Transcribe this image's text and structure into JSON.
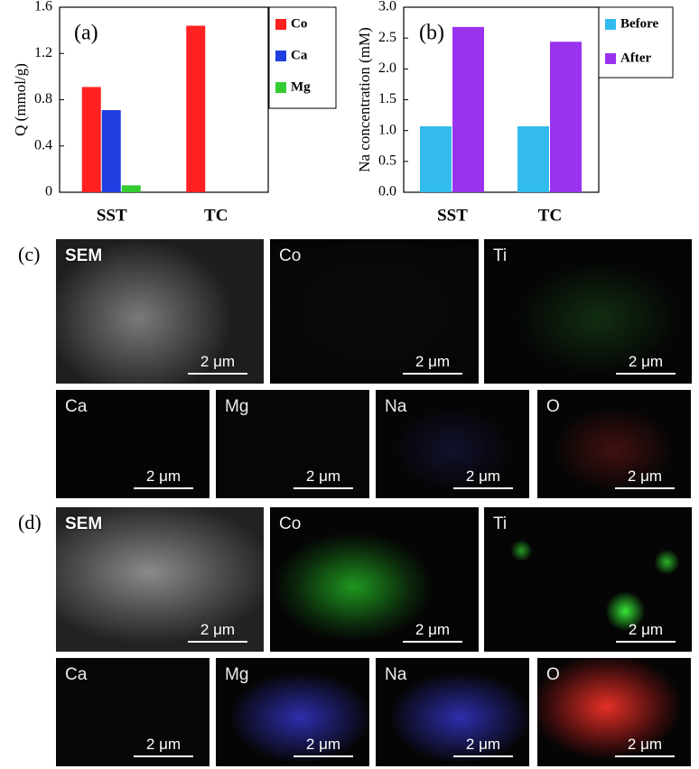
{
  "chart_data": [
    {
      "type": "bar",
      "panel_label": "(a)",
      "y_label": "Q (mmol/g)",
      "categories": [
        "SST",
        "TC"
      ],
      "series": [
        {
          "name": "Co",
          "color": "#ff2020",
          "values": [
            0.91,
            1.44
          ]
        },
        {
          "name": "Ca",
          "color": "#1f3ee0",
          "values": [
            0.71,
            0
          ]
        },
        {
          "name": "Mg",
          "color": "#33cc33",
          "values": [
            0.06,
            0
          ]
        }
      ],
      "ylim": [
        0,
        1.6
      ],
      "yticks": [
        0,
        0.4,
        0.8,
        1.2,
        1.6
      ],
      "legend": "right"
    },
    {
      "type": "bar",
      "panel_label": "(b)",
      "y_label": "Na concentration (mM)",
      "categories": [
        "SST",
        "TC"
      ],
      "series": [
        {
          "name": "Before",
          "color": "#33bbee",
          "values": [
            1.07,
            1.07
          ]
        },
        {
          "name": "After",
          "color": "#9933ee",
          "values": [
            2.68,
            2.44
          ]
        }
      ],
      "ylim": [
        0,
        3.0
      ],
      "yticks": [
        {
          "value": 0,
          "label": "0.0"
        },
        0.5,
        {
          "value": 1,
          "label": "1.0"
        },
        1.5,
        {
          "value": 2,
          "label": "2.0"
        },
        2.5,
        {
          "value": 3,
          "label": "3.0"
        }
      ],
      "legend": "right"
    }
  ],
  "panels": [
    {
      "label": "(c)",
      "tiles": [
        {
          "name": "SEM",
          "scale": "2 μm"
        },
        {
          "name": "Co",
          "scale": "2 μm"
        },
        {
          "name": "Ti",
          "scale": "2 μm"
        },
        {
          "name": "Ca",
          "scale": "2 μm"
        },
        {
          "name": "Mg",
          "scale": "2 μm"
        },
        {
          "name": "Na",
          "scale": "2 μm"
        },
        {
          "name": "O",
          "scale": "2 μm"
        }
      ]
    },
    {
      "label": "(d)",
      "tiles": [
        {
          "name": "SEM",
          "scale": "2 μm"
        },
        {
          "name": "Co",
          "scale": "2 μm"
        },
        {
          "name": "Ti",
          "scale": "2 μm"
        },
        {
          "name": "Ca",
          "scale": "2 μm"
        },
        {
          "name": "Mg",
          "scale": "2 μm"
        },
        {
          "name": "Na",
          "scale": "2 μm"
        },
        {
          "name": "O",
          "scale": "2 μm"
        }
      ]
    }
  ]
}
